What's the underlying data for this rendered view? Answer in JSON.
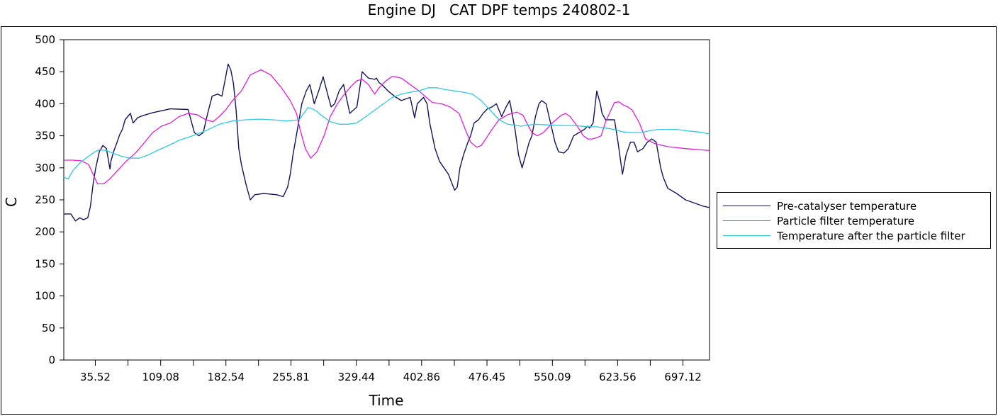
{
  "chart_data": {
    "type": "line",
    "title": "Engine DJ   CAT DPF temps 240802-1",
    "xlabel": "Time",
    "ylabel": "C",
    "xlim": [
      0,
      727
    ],
    "ylim": [
      0,
      500
    ],
    "yticks": [
      0,
      50,
      100,
      150,
      200,
      250,
      300,
      350,
      400,
      450,
      500
    ],
    "xtick_labels": [
      "35.52",
      "109.08",
      "182.54",
      "255.81",
      "329.44",
      "402.86",
      "476.45",
      "550.09",
      "623.56",
      "697.12"
    ],
    "xtick_values": [
      35.52,
      109.08,
      182.54,
      255.81,
      329.44,
      402.86,
      476.45,
      550.09,
      623.56,
      697.12
    ],
    "xtick_minor": [
      72.3,
      145.8,
      219.2,
      292.6,
      366.2,
      439.7,
      513.3,
      586.8,
      660.3
    ],
    "grid": false,
    "legend_position": "right",
    "series": [
      {
        "name": "Pre-catalyser temperature",
        "color": "#14145a",
        "x": [
          0,
          8,
          13,
          18,
          22,
          27,
          30,
          33,
          36,
          40,
          44,
          48,
          52,
          53,
          56,
          60,
          63,
          66,
          69,
          72,
          75,
          78,
          83,
          86,
          90,
          100,
          120,
          140,
          147,
          152,
          157,
          162,
          167,
          173,
          178,
          182,
          185,
          188,
          191,
          194,
          197,
          200,
          205,
          210,
          215,
          225,
          240,
          247,
          252,
          255,
          258,
          263,
          268,
          273,
          277,
          282,
          287,
          292,
          297,
          301,
          305,
          310,
          315,
          322,
          330,
          336,
          343,
          350,
          352,
          355,
          358,
          365,
          372,
          380,
          390,
          395,
          398,
          405,
          409,
          412,
          418,
          423,
          428,
          433,
          440,
          443,
          446,
          450,
          455,
          458,
          462,
          467,
          472,
          477,
          482,
          487,
          493,
          498,
          502,
          508,
          512,
          516,
          520,
          524,
          527,
          531,
          535,
          538,
          543,
          548,
          553,
          557,
          563,
          568,
          574,
          580,
          586,
          590,
          592,
          596,
          600,
          604,
          606,
          610,
          615,
          620,
          624,
          629,
          633,
          638,
          642,
          646,
          652,
          657,
          662,
          667,
          672,
          675,
          680,
          690,
          700,
          710,
          720,
          727
        ],
        "values": [
          228,
          228,
          217,
          222,
          219,
          222,
          240,
          275,
          300,
          325,
          335,
          330,
          298,
          310,
          325,
          340,
          352,
          360,
          375,
          380,
          385,
          370,
          378,
          380,
          382,
          386,
          392,
          391,
          355,
          350,
          355,
          385,
          412,
          415,
          412,
          440,
          462,
          453,
          432,
          390,
          330,
          305,
          275,
          250,
          258,
          260,
          258,
          255,
          270,
          290,
          320,
          360,
          400,
          420,
          430,
          400,
          420,
          442,
          415,
          395,
          400,
          420,
          430,
          385,
          395,
          450,
          440,
          438,
          440,
          433,
          430,
          420,
          412,
          405,
          410,
          378,
          400,
          410,
          400,
          370,
          330,
          310,
          300,
          290,
          265,
          270,
          300,
          320,
          340,
          350,
          370,
          375,
          385,
          392,
          395,
          400,
          380,
          395,
          405,
          360,
          320,
          300,
          320,
          340,
          350,
          380,
          400,
          405,
          400,
          370,
          340,
          325,
          323,
          330,
          350,
          355,
          360,
          365,
          362,
          370,
          420,
          400,
          385,
          375,
          375,
          375,
          340,
          290,
          320,
          340,
          340,
          325,
          330,
          340,
          345,
          340,
          300,
          285,
          268,
          260,
          250,
          245,
          240,
          238
        ]
      },
      {
        "name": "Particle filter temperature",
        "color": "#e020d8",
        "x": [
          0,
          10,
          20,
          28,
          33,
          38,
          45,
          52,
          60,
          70,
          80,
          90,
          100,
          110,
          120,
          130,
          140,
          150,
          160,
          168,
          175,
          182,
          190,
          200,
          210,
          222,
          233,
          245,
          255,
          262,
          266,
          272,
          278,
          285,
          293,
          300,
          308,
          316,
          324,
          330,
          336,
          343,
          350,
          355,
          362,
          370,
          380,
          390,
          400,
          408,
          415,
          425,
          435,
          445,
          452,
          458,
          465,
          470,
          475,
          482,
          490,
          500,
          510,
          517,
          522,
          527,
          533,
          540,
          550,
          560,
          565,
          570,
          578,
          585,
          590,
          595,
          600,
          605,
          610,
          616,
          620,
          625,
          630,
          635,
          640,
          648,
          655,
          665,
          680,
          700,
          727
        ],
        "values": [
          312,
          312,
          311,
          305,
          290,
          275,
          275,
          283,
          295,
          310,
          322,
          338,
          355,
          365,
          370,
          380,
          385,
          383,
          375,
          372,
          380,
          390,
          405,
          420,
          445,
          453,
          445,
          425,
          405,
          385,
          360,
          330,
          315,
          325,
          350,
          380,
          400,
          415,
          428,
          436,
          438,
          430,
          415,
          425,
          435,
          443,
          440,
          430,
          420,
          410,
          402,
          400,
          395,
          385,
          360,
          340,
          332,
          335,
          345,
          360,
          375,
          383,
          387,
          382,
          368,
          355,
          350,
          355,
          370,
          382,
          385,
          380,
          365,
          350,
          345,
          345,
          347,
          350,
          372,
          390,
          402,
          403,
          398,
          395,
          390,
          370,
          345,
          338,
          333,
          330,
          327
        ]
      },
      {
        "name": "Temperature after the particle filter",
        "color": "#30c8e0",
        "x": [
          0,
          5,
          10,
          15,
          20,
          25,
          30,
          35,
          40,
          48,
          55,
          65,
          75,
          85,
          95,
          105,
          115,
          130,
          145,
          160,
          175,
          190,
          205,
          220,
          235,
          250,
          265,
          270,
          275,
          280,
          285,
          290,
          300,
          310,
          320,
          330,
          340,
          350,
          360,
          370,
          380,
          390,
          400,
          410,
          420,
          430,
          440,
          450,
          460,
          465,
          470,
          480,
          490,
          500,
          515,
          530,
          545,
          560,
          575,
          590,
          600,
          610,
          620,
          630,
          640,
          650,
          660,
          670,
          680,
          690,
          700,
          715,
          727
        ],
        "values": [
          285,
          283,
          295,
          303,
          310,
          315,
          320,
          325,
          328,
          327,
          323,
          318,
          315,
          315,
          320,
          327,
          333,
          343,
          350,
          358,
          368,
          373,
          375,
          376,
          375,
          373,
          375,
          385,
          394,
          392,
          388,
          382,
          372,
          368,
          368,
          370,
          380,
          390,
          400,
          410,
          415,
          418,
          420,
          425,
          425,
          422,
          420,
          418,
          415,
          410,
          405,
          390,
          375,
          368,
          365,
          368,
          367,
          366,
          366,
          364,
          364,
          362,
          360,
          356,
          355,
          355,
          358,
          360,
          360,
          360,
          358,
          356,
          353
        ]
      }
    ]
  }
}
